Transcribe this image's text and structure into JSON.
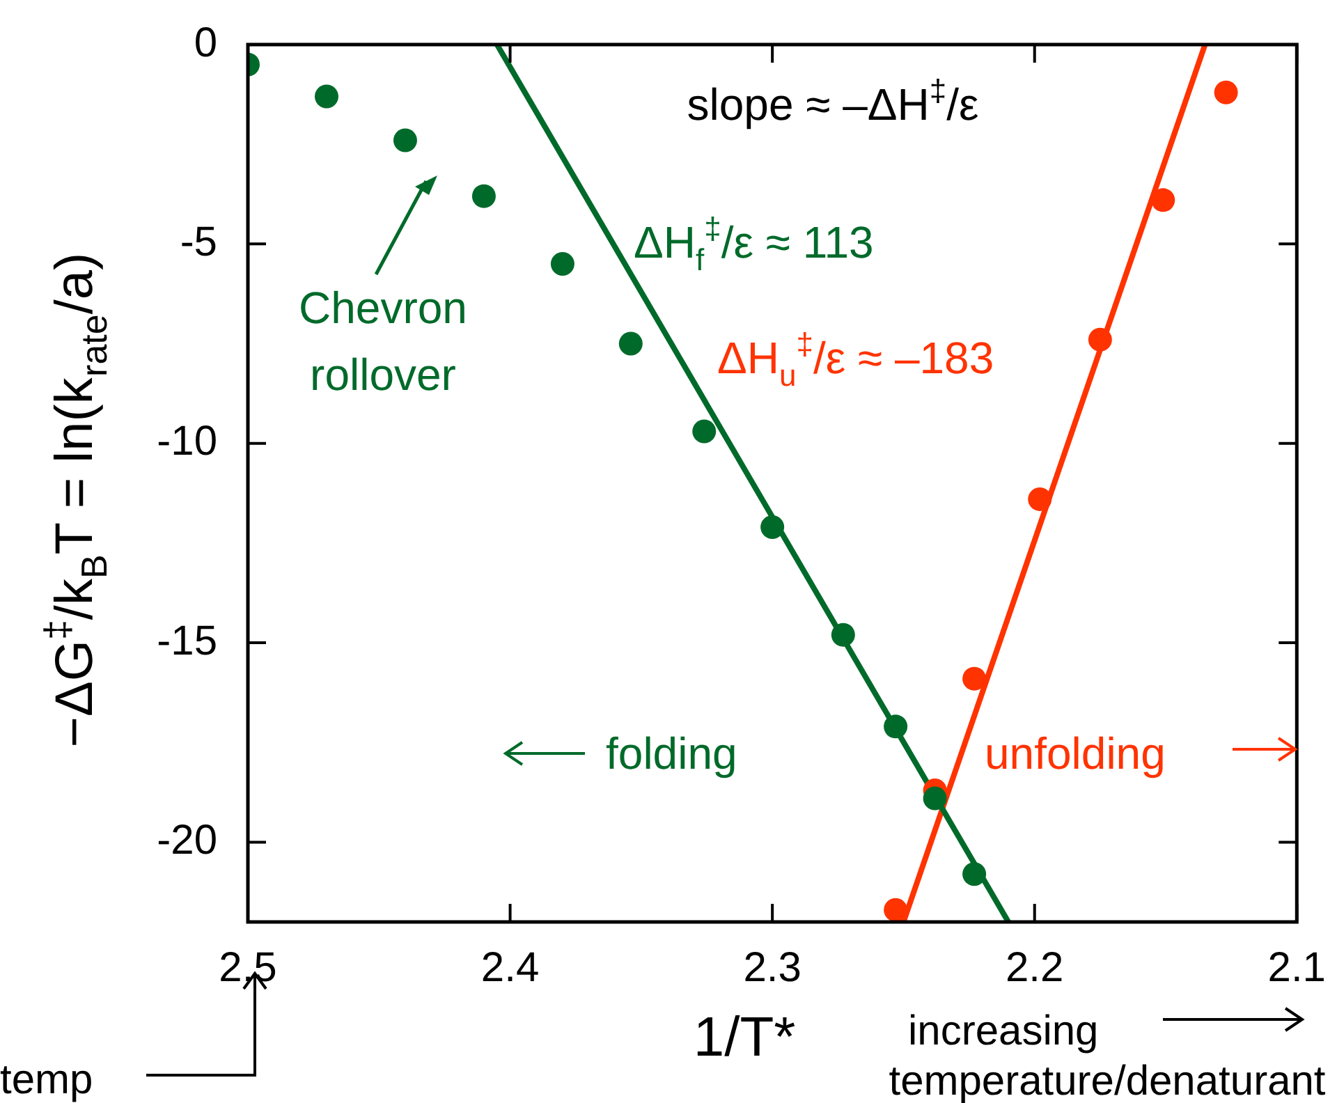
{
  "chart_data": {
    "type": "scatter",
    "xlabel": "1/T*",
    "ylabel": "−ΔG$^{‡}$/k$_{B}$T = ln(k$_{rate}$/a)",
    "xlim": [
      2.5,
      2.1
    ],
    "xticks": [
      2.5,
      2.4,
      2.3,
      2.2,
      2.1
    ],
    "ylim": [
      -22,
      0
    ],
    "yticks": [
      0,
      -5,
      -10,
      -15,
      -20
    ],
    "grid": false,
    "legend": false,
    "marker": "circle",
    "series": [
      {
        "color": "#006a2a",
        "x": [
          2.5,
          2.47,
          2.44,
          2.41,
          2.38,
          2.354,
          2.326,
          2.3,
          2.273,
          2.253,
          2.238,
          2.223
        ],
        "values": [
          -0.5,
          -1.3,
          -2.4,
          -3.8,
          -5.5,
          -7.5,
          -9.7,
          -12.1,
          -14.8,
          -17.1,
          -18.9,
          -20.8
        ]
      },
      {
        "color": "#ff3300",
        "x": [
          2.253,
          2.238,
          2.223,
          2.198,
          2.175,
          2.151,
          2.127
        ],
        "values": [
          -21.7,
          -18.7,
          -15.9,
          -11.4,
          -7.4,
          -3.9,
          -1.2
        ]
      },
      {
        "type": "line",
        "color": "#006a2a",
        "marker": "none",
        "x": [
          2.405,
          2.21
        ],
        "values": [
          0,
          -22
        ]
      },
      {
        "type": "line",
        "color": "#ff3300",
        "marker": "none",
        "x": [
          2.25,
          2.135
        ],
        "values": [
          -22,
          0
        ]
      }
    ],
    "annotations": [
      "slope ≈ –ΔH$^{‡}$/ε",
      "ΔH$_{f}$$^{‡}$/ε ≈ 113",
      "ΔH$_{u}$$^{‡}$/ε ≈ –183",
      "Chevron rollover",
      "folding",
      "unfolding",
      "increasing",
      "temperature/denaturant",
      "temp"
    ]
  }
}
